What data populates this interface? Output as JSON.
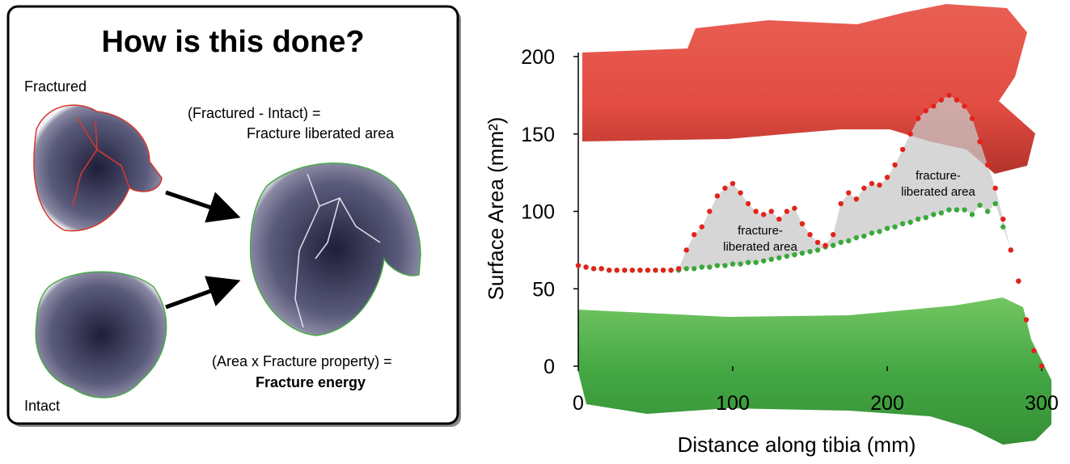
{
  "diagram": {
    "title": "How is this done?",
    "fractured_label": "Fractured",
    "intact_label": "Intact",
    "difference_line1": "(Fractured - Intact) =",
    "difference_line2": "Fracture liberated area",
    "energy_line1": "(Area x Fracture property) =",
    "energy_line2": "Fracture energy"
  },
  "chart_data": {
    "type": "scatter",
    "x_label": "Distance along tibia (mm)",
    "y_label": "Surface Area (mm²)",
    "x": [
      0,
      5,
      10,
      15,
      20,
      25,
      30,
      35,
      40,
      45,
      50,
      55,
      60,
      65,
      70,
      75,
      80,
      85,
      90,
      95,
      100,
      105,
      110,
      115,
      120,
      125,
      130,
      135,
      140,
      145,
      150,
      155,
      160,
      165,
      170,
      175,
      180,
      185,
      190,
      195,
      200,
      205,
      210,
      215,
      220,
      225,
      230,
      235,
      240,
      245,
      250,
      255,
      260,
      265,
      270,
      275,
      280,
      285,
      290,
      295,
      300
    ],
    "series": [
      {
        "color": "#e2231a",
        "values": [
          65,
          64,
          63,
          63,
          62,
          62,
          62,
          62,
          62,
          62,
          62,
          62,
          62,
          63,
          75,
          85,
          90,
          100,
          110,
          115,
          118,
          112,
          105,
          100,
          98,
          100,
          95,
          100,
          102,
          92,
          85,
          80,
          78,
          85,
          105,
          112,
          108,
          115,
          118,
          117,
          122,
          130,
          140,
          150,
          160,
          165,
          168,
          172,
          175,
          172,
          168,
          160,
          145,
          130,
          115,
          95,
          75,
          55,
          30,
          10,
          0
        ]
      },
      {
        "color": "#3aa83a",
        "values": [
          65,
          64,
          63,
          63,
          62,
          62,
          62,
          62,
          62,
          62,
          62,
          62,
          62,
          62,
          63,
          63,
          64,
          64,
          65,
          65,
          66,
          66,
          67,
          67,
          68,
          69,
          70,
          71,
          72,
          73,
          74,
          75,
          77,
          78,
          80,
          81,
          83,
          84,
          86,
          87,
          89,
          90,
          92,
          93,
          95,
          96,
          98,
          99,
          101,
          101,
          101,
          98,
          104,
          100,
          105,
          90,
          75,
          55,
          30,
          10,
          0
        ]
      }
    ],
    "annotations": [
      [
        "fracture-",
        "liberated area"
      ],
      [
        "fracture-",
        "liberated area"
      ]
    ],
    "xlim": [
      0,
      300
    ],
    "xticks": [
      0,
      100,
      200,
      300
    ],
    "ylim": [
      0,
      200
    ],
    "yticks": [
      0,
      50,
      100,
      150,
      200
    ]
  }
}
